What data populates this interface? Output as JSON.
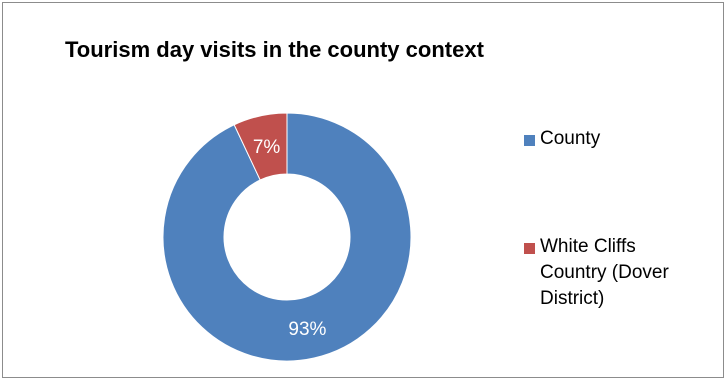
{
  "chart_data": {
    "type": "pie",
    "variant": "doughnut",
    "title": "Tourism day visits in the county context",
    "categories": [
      "County",
      "White Cliffs Country (Dover District)"
    ],
    "values": [
      93,
      7
    ],
    "data_labels": [
      "93%",
      "7%"
    ],
    "colors": [
      "#4f81bd",
      "#c0504d"
    ],
    "legend_position": "right",
    "legend_entries": [
      {
        "lines": [
          "County"
        ]
      },
      {
        "lines": [
          "White Cliffs",
          "Country (Dover",
          "District)"
        ]
      }
    ]
  }
}
